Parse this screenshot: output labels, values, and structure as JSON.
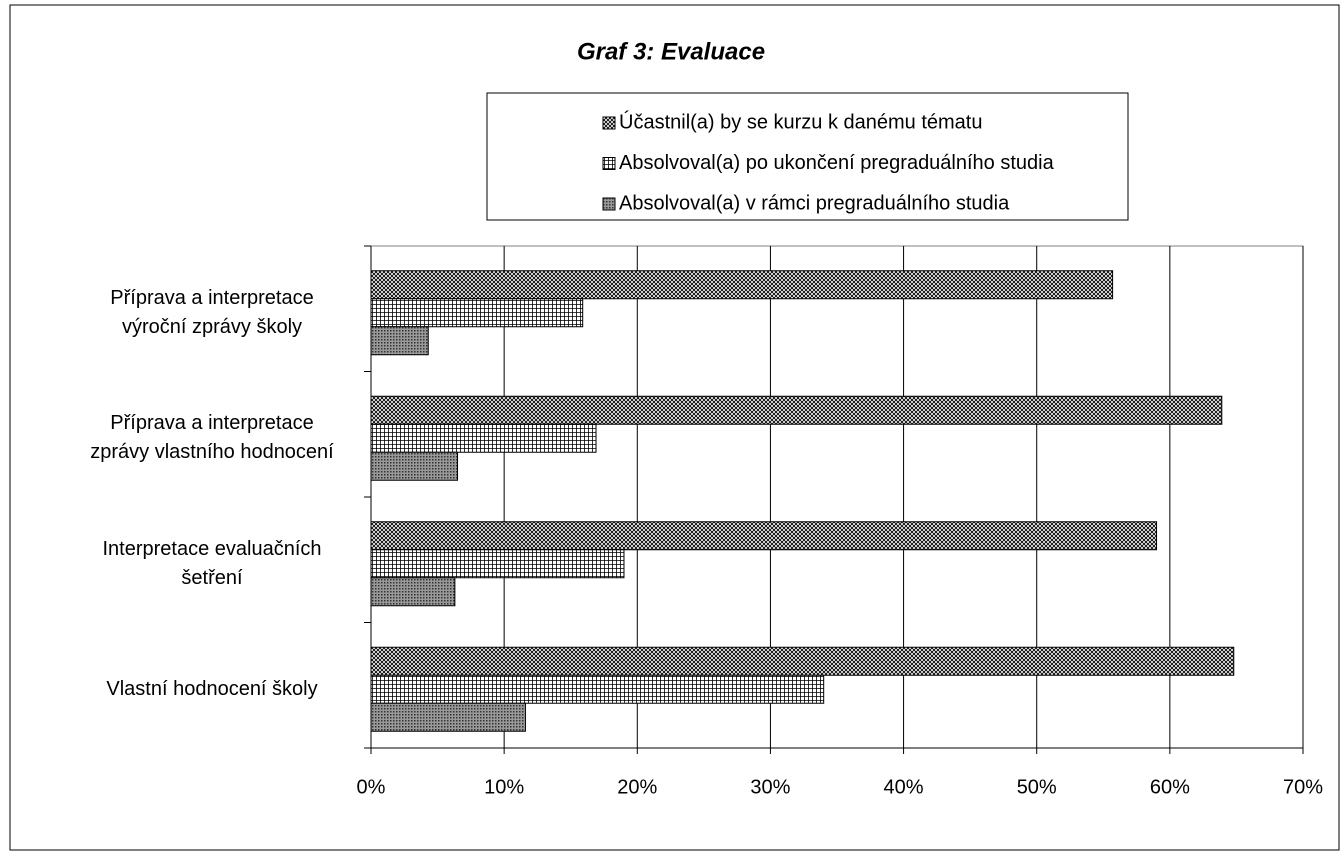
{
  "chart_data": {
    "type": "hbar",
    "title": "Graf 3: Evaluace",
    "categories": [
      "Příprava a interpretace\nvýroční zprávy školy",
      "Příprava a interpretace\nzprávy vlastního hodnocení",
      "Interpretace evaluačních\nšetření",
      "Vlastní hodnocení školy"
    ],
    "series": [
      {
        "name": "Účastnil(a) by se kurzu k danému tématu",
        "pattern": "crosshatch",
        "values": [
          55.7,
          63.9,
          59.0,
          64.8
        ]
      },
      {
        "name": "Absolvoval(a) po ukončení pregraduálního studia",
        "pattern": "grid",
        "values": [
          15.9,
          16.9,
          19.0,
          34.0
        ]
      },
      {
        "name": "Absolvoval(a) v rámci pregraduálního studia",
        "pattern": "dots",
        "values": [
          4.3,
          6.5,
          6.3,
          11.6
        ]
      }
    ],
    "xlim": [
      0,
      70
    ],
    "xticks": [
      {
        "value": 0,
        "label": "0%"
      },
      {
        "value": 10,
        "label": "10%"
      },
      {
        "value": 20,
        "label": "20%"
      },
      {
        "value": 30,
        "label": "30%"
      },
      {
        "value": 40,
        "label": "40%"
      },
      {
        "value": 50,
        "label": "50%"
      },
      {
        "value": 60,
        "label": "60%"
      },
      {
        "value": 70,
        "label": "70%"
      }
    ],
    "grid": true
  }
}
